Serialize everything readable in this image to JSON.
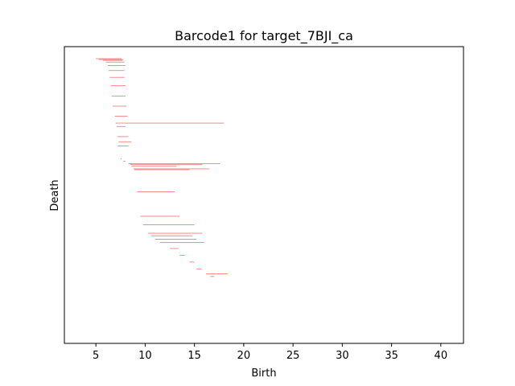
{
  "chart_data": {
    "type": "barcode",
    "title": "Barcode1 for target_7BJI_ca",
    "xlabel": "Birth",
    "ylabel": "Death",
    "xlim": [
      1.8,
      42.3
    ],
    "xticks": [
      5,
      10,
      15,
      20,
      25,
      30,
      35,
      40
    ],
    "xtick_labels": [
      "5",
      "10",
      "15",
      "20",
      "25",
      "30",
      "35",
      "40"
    ],
    "yticks_shown": false,
    "grid": false,
    "bar_color": "#f07070",
    "bar_count": 318,
    "bars": [
      {
        "start": 5.0,
        "end": 7.6,
        "order": 0
      },
      {
        "start": 5.3,
        "end": 7.8,
        "order": 1
      },
      {
        "start": 5.7,
        "end": 7.7,
        "order": 2
      },
      {
        "start": 6.0,
        "end": 7.9,
        "order": 4
      },
      {
        "start": 6.2,
        "end": 8.0,
        "order": 8
      },
      {
        "start": 6.3,
        "end": 7.9,
        "order": 14
      },
      {
        "start": 6.4,
        "end": 7.9,
        "order": 22
      },
      {
        "start": 6.5,
        "end": 8.0,
        "order": 32
      },
      {
        "start": 6.6,
        "end": 8.0,
        "order": 44
      },
      {
        "start": 6.7,
        "end": 8.1,
        "order": 56
      },
      {
        "start": 6.9,
        "end": 8.2,
        "order": 68
      },
      {
        "start": 7.0,
        "end": 18.0,
        "order": 76
      },
      {
        "start": 7.1,
        "end": 8.0,
        "order": 80
      },
      {
        "start": 7.2,
        "end": 8.3,
        "order": 92
      },
      {
        "start": 7.3,
        "end": 8.6,
        "order": 98
      },
      {
        "start": 7.2,
        "end": 8.3,
        "order": 103
      },
      {
        "start": 7.5,
        "end": 7.6,
        "order": 118
      },
      {
        "start": 7.8,
        "end": 8.0,
        "order": 121
      },
      {
        "start": 8.3,
        "end": 17.6,
        "order": 124
      },
      {
        "start": 8.5,
        "end": 15.8,
        "order": 125
      },
      {
        "start": 8.6,
        "end": 13.2,
        "order": 127
      },
      {
        "start": 8.8,
        "end": 16.5,
        "order": 130
      },
      {
        "start": 8.9,
        "end": 14.5,
        "order": 131
      },
      {
        "start": 9.2,
        "end": 13.0,
        "order": 157
      },
      {
        "start": 9.5,
        "end": 13.5,
        "order": 186
      },
      {
        "start": 9.8,
        "end": 15.0,
        "order": 196
      },
      {
        "start": 10.3,
        "end": 15.8,
        "order": 206
      },
      {
        "start": 10.6,
        "end": 14.8,
        "order": 209
      },
      {
        "start": 11.0,
        "end": 15.2,
        "order": 213
      },
      {
        "start": 11.5,
        "end": 16.0,
        "order": 217
      },
      {
        "start": 12.5,
        "end": 13.4,
        "order": 224
      },
      {
        "start": 13.5,
        "end": 14.0,
        "order": 232
      },
      {
        "start": 14.5,
        "end": 15.0,
        "order": 240
      },
      {
        "start": 15.2,
        "end": 15.7,
        "order": 248
      },
      {
        "start": 16.2,
        "end": 18.4,
        "order": 254
      },
      {
        "start": 16.6,
        "end": 17.0,
        "order": 257
      }
    ]
  }
}
